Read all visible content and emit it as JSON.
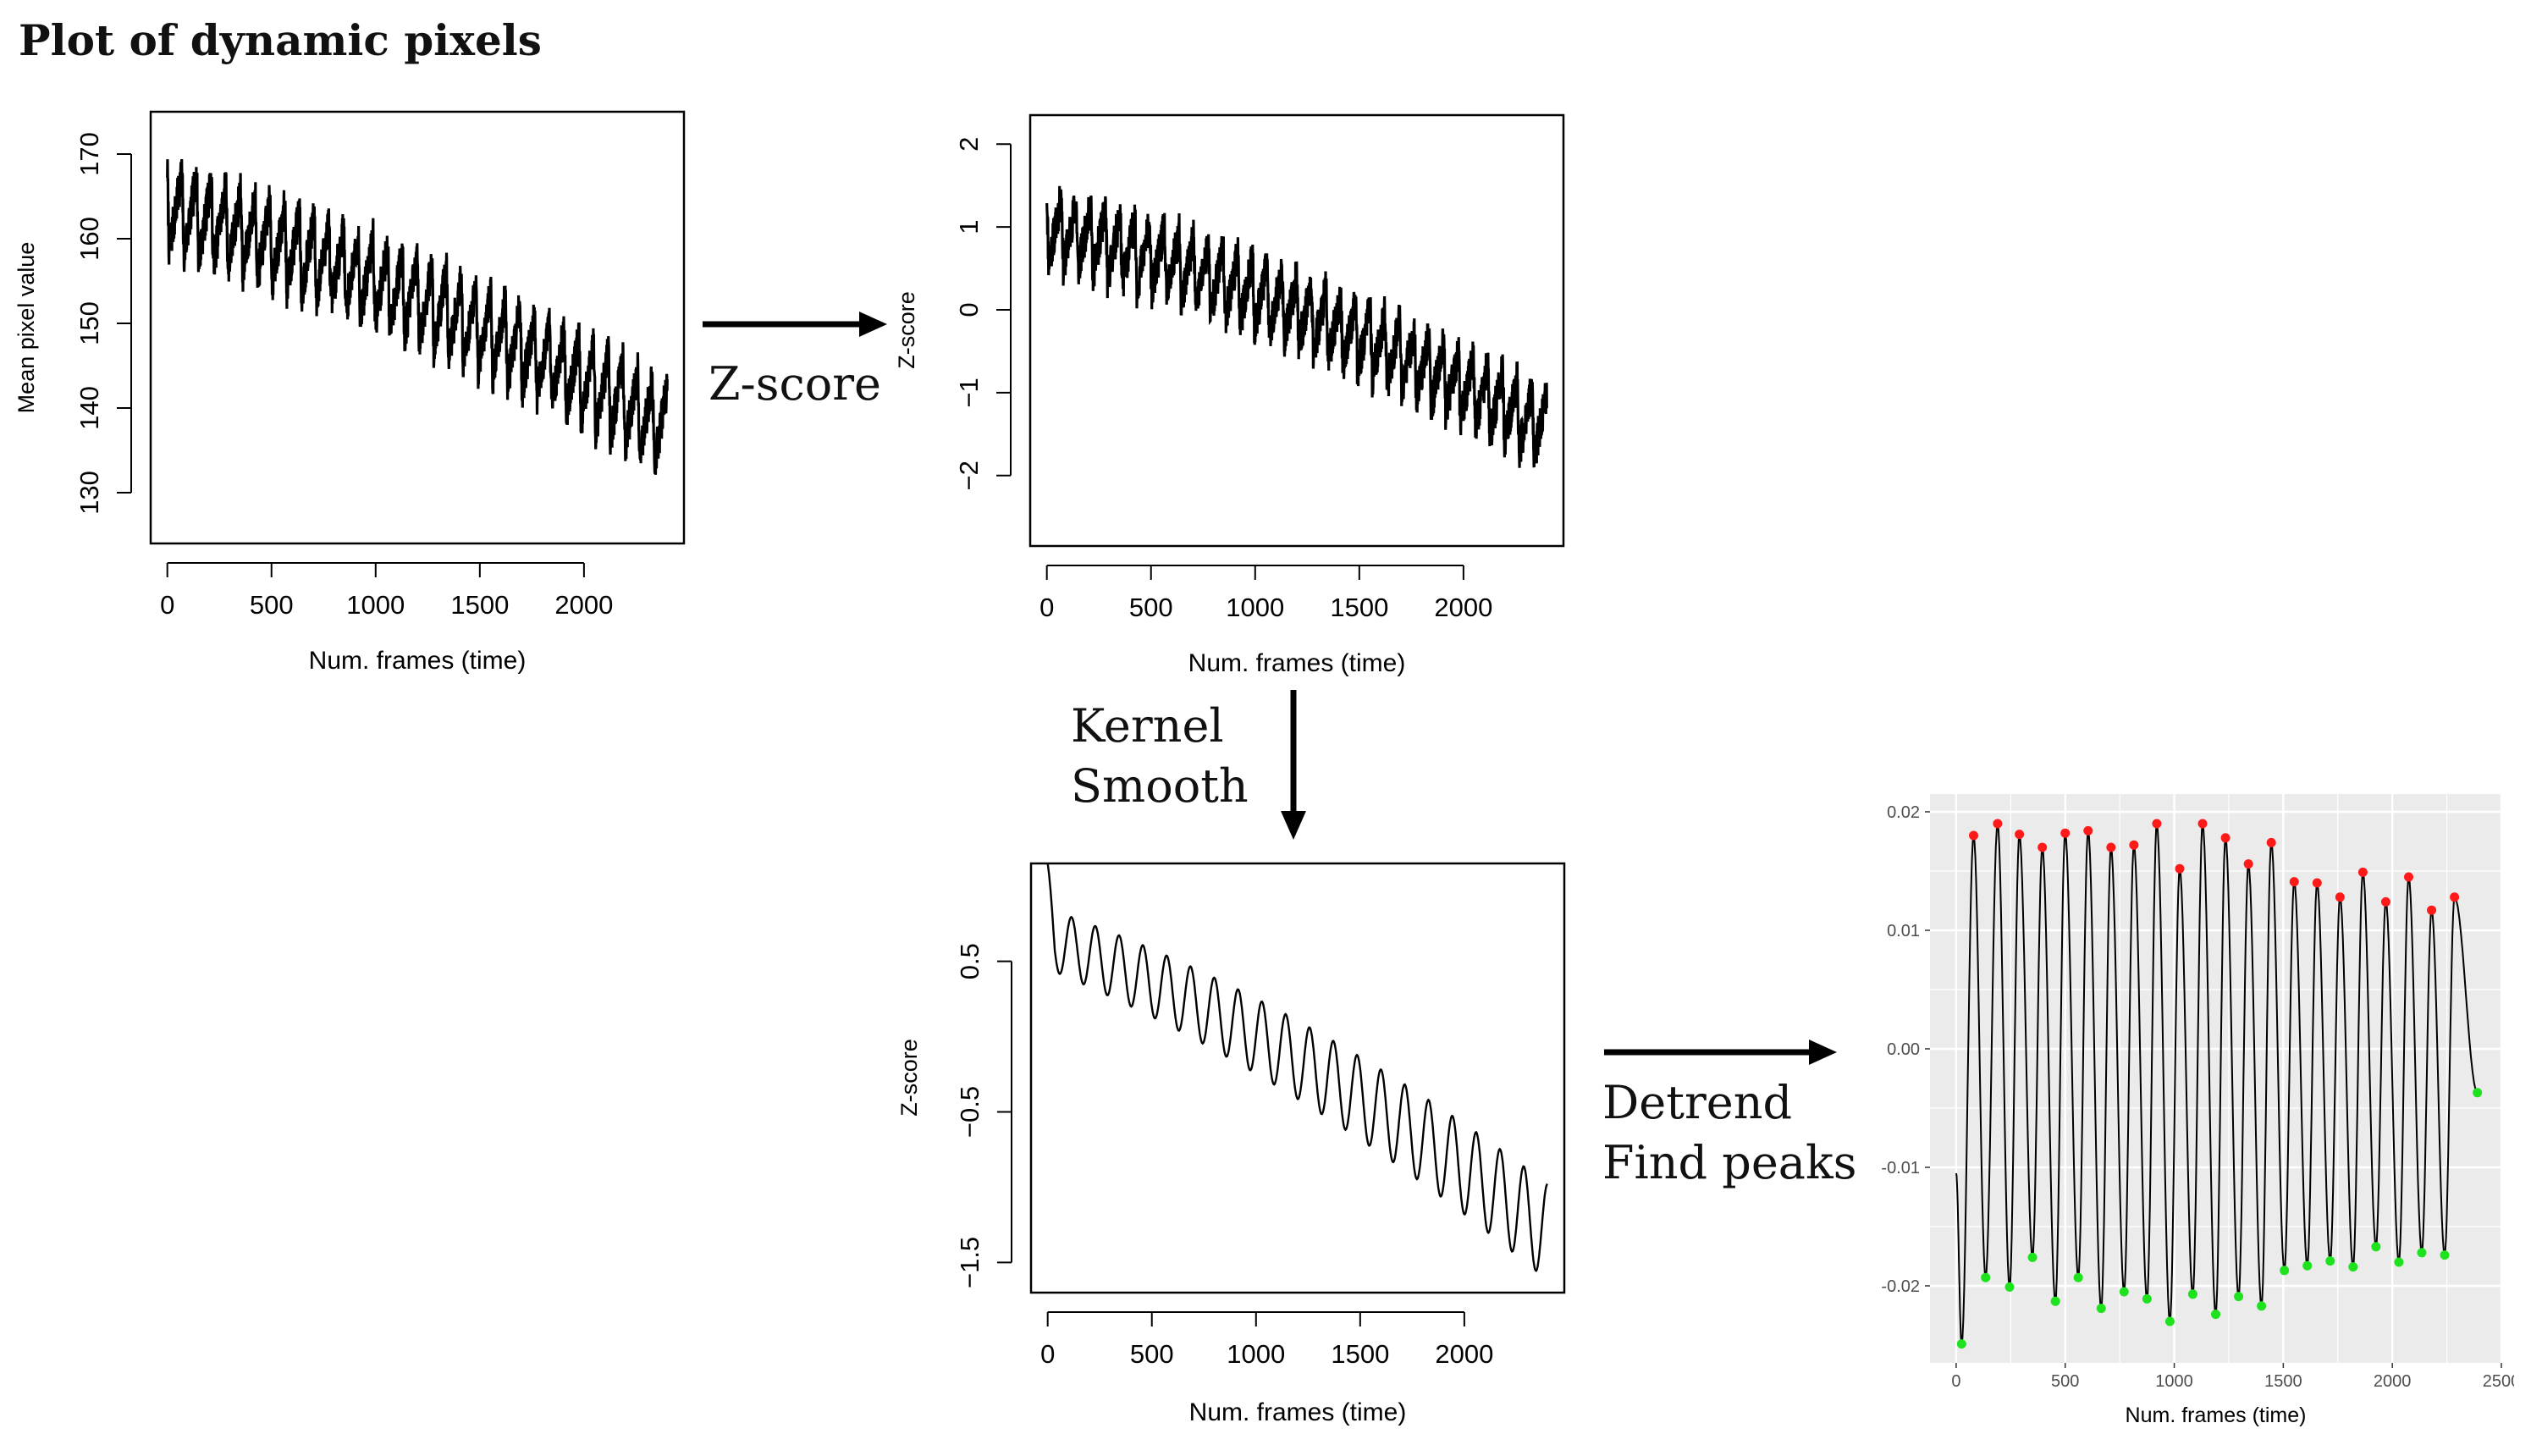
{
  "page": {
    "title": "Plot of dynamic pixels"
  },
  "flow": {
    "zscore_label": "Z-score",
    "kernel_label_1": "Kernel",
    "kernel_label_2": "Smooth",
    "detrend_label_1": "Detrend",
    "detrend_label_2": "Find peaks"
  },
  "chart_data": [
    {
      "id": "raw",
      "type": "line",
      "title": "",
      "xlabel": "Num. frames (time)",
      "ylabel": "Mean pixel value",
      "xlim": [
        -80,
        2480
      ],
      "ylim": [
        124,
        175
      ],
      "xticks": [
        0,
        500,
        1000,
        1500,
        2000
      ],
      "yticks": [
        130,
        140,
        150,
        160,
        170
      ],
      "series": [
        {
          "name": "raw",
          "start": 163,
          "end": 137,
          "amplitude": 10,
          "noise": 2.5,
          "cycles": 34,
          "x_max": 2400
        }
      ]
    },
    {
      "id": "zscore",
      "type": "line",
      "title": "",
      "xlabel": "Num. frames (time)",
      "ylabel": "Z-score",
      "xlim": [
        -80,
        2480
      ],
      "ylim": [
        -2.85,
        2.35
      ],
      "xticks": [
        0,
        500,
        1000,
        1500,
        2000
      ],
      "yticks": [
        -2,
        -1,
        0,
        1,
        2
      ],
      "series": [
        {
          "name": "z",
          "start": 0.95,
          "end": -1.5,
          "amplitude": 0.85,
          "noise": 0.25,
          "cycles": 34,
          "x_max": 2400
        }
      ]
    },
    {
      "id": "smoothed",
      "type": "line",
      "title": "",
      "xlabel": "Num. frames (time)",
      "ylabel": "Z-score",
      "xlim": [
        -80,
        2480
      ],
      "ylim": [
        -1.7,
        1.15
      ],
      "xticks": [
        0,
        500,
        1000,
        1500,
        2000
      ],
      "yticks": [
        -1.5,
        -0.5,
        0.5
      ],
      "series": [
        {
          "name": "smooth",
          "start": 0.65,
          "end": -1.3,
          "amplitude": 0.2,
          "noise": 0,
          "cycles": 21,
          "x_max": 2400
        }
      ]
    },
    {
      "id": "detrended",
      "type": "line",
      "style": "ggplot",
      "title": "",
      "xlabel": "Num. frames (time)",
      "ylabel": "",
      "xlim": [
        -120,
        2500
      ],
      "ylim": [
        -0.0265,
        0.0215
      ],
      "xticks": [
        0,
        500,
        1000,
        1500,
        2000,
        2500
      ],
      "yticks": [
        -0.02,
        -0.01,
        0.0,
        0.01,
        0.02
      ],
      "ytick_labels": [
        "-0.02",
        "-0.01",
        "0.00",
        "0.01",
        "0.02"
      ],
      "series": [
        {
          "name": "detrended",
          "start_x": 0,
          "start_y": -0.0105,
          "end_x": 2390,
          "end_y": -0.0037
        }
      ],
      "peaks": {
        "x": [
          80,
          190,
          290,
          395,
          500,
          605,
          710,
          815,
          920,
          1025,
          1130,
          1235,
          1340,
          1445,
          1550,
          1655,
          1760,
          1865,
          1970,
          2075,
          2180,
          2285
        ],
        "y": [
          0.018,
          0.019,
          0.0181,
          0.017,
          0.0182,
          0.0184,
          0.017,
          0.0172,
          0.019,
          0.0152,
          0.019,
          0.0178,
          0.0156,
          0.0174,
          0.0141,
          0.014,
          0.0128,
          0.0149,
          0.0124,
          0.0145,
          0.0117,
          0.0128
        ]
      },
      "troughs": {
        "x": [
          25,
          135,
          245,
          350,
          455,
          560,
          665,
          770,
          875,
          980,
          1085,
          1190,
          1295,
          1400,
          1505,
          1610,
          1715,
          1820,
          1925,
          2030,
          2135,
          2240
        ],
        "y": [
          -0.0249,
          -0.0193,
          -0.0201,
          -0.0176,
          -0.0213,
          -0.0193,
          -0.0219,
          -0.0205,
          -0.0211,
          -0.023,
          -0.0207,
          -0.0224,
          -0.0209,
          -0.0217,
          -0.0187,
          -0.0183,
          -0.0179,
          -0.0184,
          -0.0167,
          -0.018,
          -0.0172,
          -0.0174
        ]
      },
      "colors": {
        "peak": "#ff1a1a",
        "trough": "#1de21d",
        "panel": "#ebebeb",
        "grid": "#ffffff"
      }
    }
  ]
}
